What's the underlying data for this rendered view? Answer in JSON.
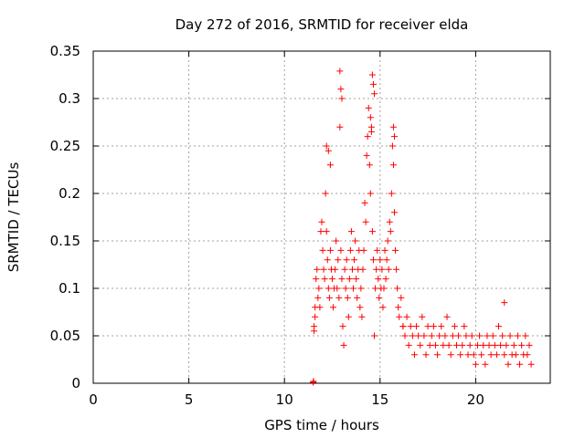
{
  "chart_data": {
    "type": "scatter",
    "title": "Day 272 of 2016, SRMTID for receiver elda",
    "xlabel": "GPS time / hours",
    "ylabel": "SRMTID / TECUs",
    "xlim": [
      0,
      23.9
    ],
    "ylim": [
      0,
      0.35
    ],
    "x_ticks": [
      0,
      5,
      10,
      15,
      20
    ],
    "x_tick_labels": [
      "0",
      "5",
      "10",
      "15",
      "20"
    ],
    "y_ticks": [
      0,
      0.05,
      0.1,
      0.15,
      0.2,
      0.25,
      0.3,
      0.35
    ],
    "y_tick_labels": [
      "0",
      "0.05",
      "0.1",
      "0.15",
      "0.2",
      "0.25",
      "0.3",
      "0.35"
    ],
    "grid": true,
    "marker": "+",
    "color": "#ff0000",
    "series": [
      {
        "name": "SRMTID",
        "x": [
          11.5,
          11.52,
          11.55,
          11.6,
          11.65,
          11.7,
          11.75,
          11.8,
          11.85,
          11.9,
          11.95,
          12.0,
          12.05,
          12.1,
          12.15,
          12.2,
          12.25,
          12.3,
          12.35,
          12.4,
          12.45,
          12.5,
          12.55,
          12.6,
          12.65,
          12.7,
          12.75,
          12.8,
          12.85,
          12.9,
          12.95,
          13.0,
          13.05,
          13.1,
          13.15,
          13.2,
          13.25,
          13.3,
          13.35,
          13.4,
          13.45,
          13.5,
          13.55,
          13.6,
          13.65,
          13.7,
          13.75,
          13.8,
          13.85,
          13.9,
          13.95,
          14.0,
          14.05,
          14.1,
          14.15,
          14.2,
          14.25,
          14.3,
          14.35,
          14.4,
          14.45,
          14.5,
          14.55,
          14.6,
          14.65,
          14.7,
          14.75,
          14.8,
          14.85,
          14.9,
          14.95,
          15.0,
          15.05,
          15.1,
          15.15,
          15.2,
          15.25,
          15.3,
          15.35,
          15.4,
          15.45,
          15.5,
          15.55,
          15.6,
          15.65,
          15.7,
          15.75,
          15.8,
          15.85,
          15.9,
          15.95,
          16.0,
          16.1,
          16.2,
          16.3,
          16.4,
          16.5,
          16.6,
          16.7,
          16.8,
          16.9,
          17.0,
          17.1,
          17.2,
          17.3,
          17.4,
          17.5,
          17.6,
          17.7,
          17.8,
          17.9,
          18.0,
          18.1,
          18.2,
          18.3,
          18.4,
          18.5,
          18.6,
          18.7,
          18.8,
          18.9,
          19.0,
          19.1,
          19.2,
          19.3,
          19.4,
          19.5,
          19.6,
          19.7,
          19.8,
          19.9,
          20.0,
          20.1,
          20.2,
          20.3,
          20.4,
          20.5,
          20.6,
          20.7,
          20.8,
          20.9,
          21.0,
          21.1,
          21.2,
          21.3,
          21.4,
          21.5,
          21.6,
          21.7,
          21.8,
          21.9,
          22.0,
          22.1,
          22.2,
          22.3,
          22.4,
          22.5,
          22.6,
          22.7,
          22.8,
          22.9,
          12.9,
          12.95,
          13.0,
          14.6,
          14.65,
          14.7,
          12.2,
          12.3,
          12.4,
          14.5,
          14.55,
          15.7,
          15.75,
          16.2,
          21.5,
          11.55,
          11.6
        ],
        "y": [
          0.001,
          0.002,
          0.06,
          0.08,
          0.11,
          0.12,
          0.09,
          0.1,
          0.08,
          0.16,
          0.17,
          0.14,
          0.12,
          0.11,
          0.2,
          0.16,
          0.13,
          0.1,
          0.09,
          0.14,
          0.12,
          0.11,
          0.08,
          0.1,
          0.12,
          0.15,
          0.1,
          0.13,
          0.09,
          0.27,
          0.14,
          0.11,
          0.06,
          0.04,
          0.12,
          0.1,
          0.13,
          0.09,
          0.07,
          0.11,
          0.14,
          0.16,
          0.12,
          0.1,
          0.13,
          0.15,
          0.11,
          0.09,
          0.12,
          0.14,
          0.08,
          0.1,
          0.07,
          0.12,
          0.14,
          0.19,
          0.17,
          0.24,
          0.26,
          0.29,
          0.23,
          0.2,
          0.27,
          0.16,
          0.13,
          0.05,
          0.1,
          0.12,
          0.14,
          0.11,
          0.09,
          0.13,
          0.1,
          0.12,
          0.08,
          0.1,
          0.14,
          0.11,
          0.13,
          0.15,
          0.12,
          0.17,
          0.16,
          0.2,
          0.25,
          0.23,
          0.18,
          0.14,
          0.12,
          0.1,
          0.08,
          0.07,
          0.09,
          0.06,
          0.05,
          0.07,
          0.04,
          0.06,
          0.05,
          0.03,
          0.06,
          0.05,
          0.04,
          0.07,
          0.05,
          0.03,
          0.06,
          0.04,
          0.05,
          0.06,
          0.04,
          0.03,
          0.05,
          0.06,
          0.04,
          0.05,
          0.07,
          0.04,
          0.03,
          0.05,
          0.06,
          0.04,
          0.05,
          0.03,
          0.04,
          0.06,
          0.05,
          0.03,
          0.04,
          0.05,
          0.03,
          0.02,
          0.04,
          0.05,
          0.03,
          0.04,
          0.02,
          0.05,
          0.04,
          0.03,
          0.05,
          0.04,
          0.03,
          0.06,
          0.04,
          0.05,
          0.03,
          0.04,
          0.02,
          0.05,
          0.03,
          0.04,
          0.03,
          0.05,
          0.02,
          0.04,
          0.03,
          0.05,
          0.03,
          0.04,
          0.02,
          0.329,
          0.31,
          0.3,
          0.325,
          0.315,
          0.305,
          0.25,
          0.245,
          0.23,
          0.28,
          0.265,
          0.27,
          0.26,
          0.06,
          0.085,
          0.055,
          0.07
        ]
      }
    ]
  }
}
